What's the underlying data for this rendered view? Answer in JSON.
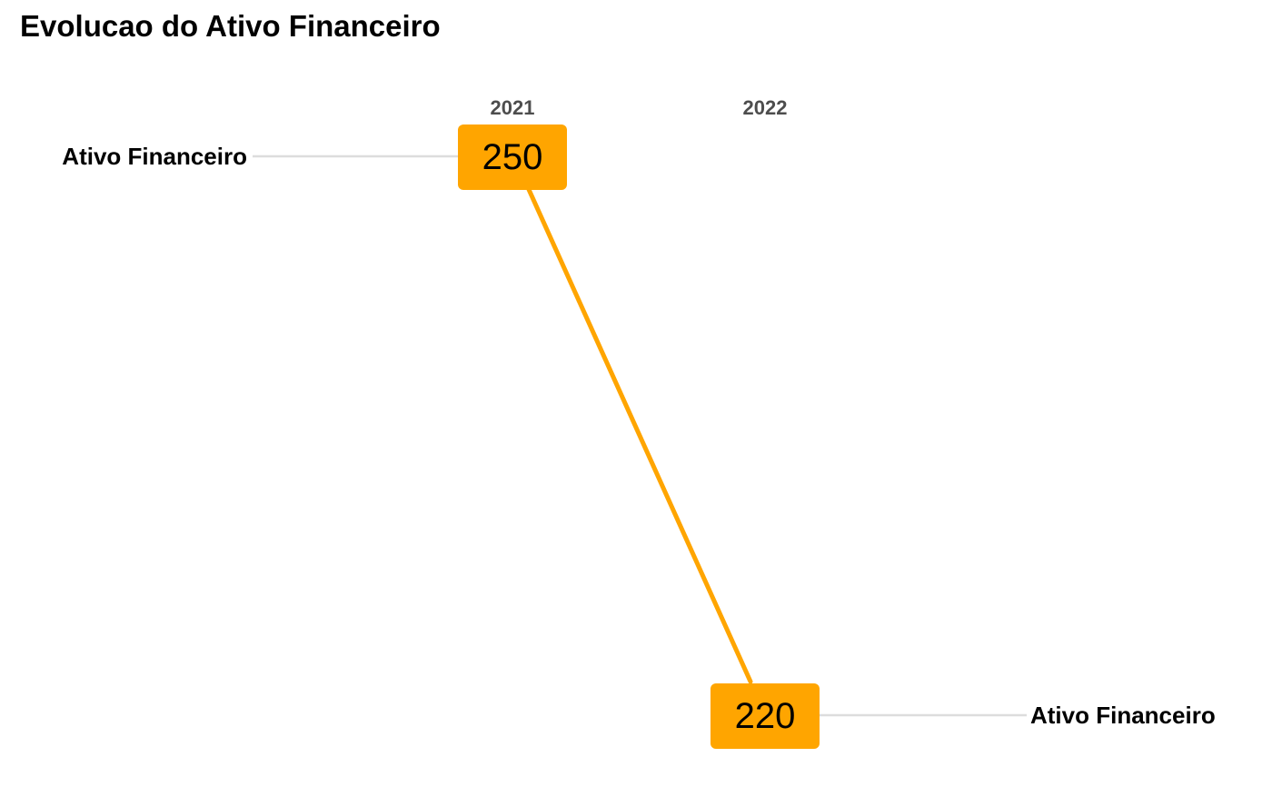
{
  "chart_data": {
    "type": "line",
    "title": "Evolucao do Ativo Financeiro",
    "x": [
      "2021",
      "2022"
    ],
    "series": [
      {
        "name": "Ativo Financeiro",
        "values": [
          250,
          220
        ],
        "color": "#FFA500"
      }
    ],
    "connector_color": "#dddddd",
    "grid": false,
    "legend": "none"
  }
}
